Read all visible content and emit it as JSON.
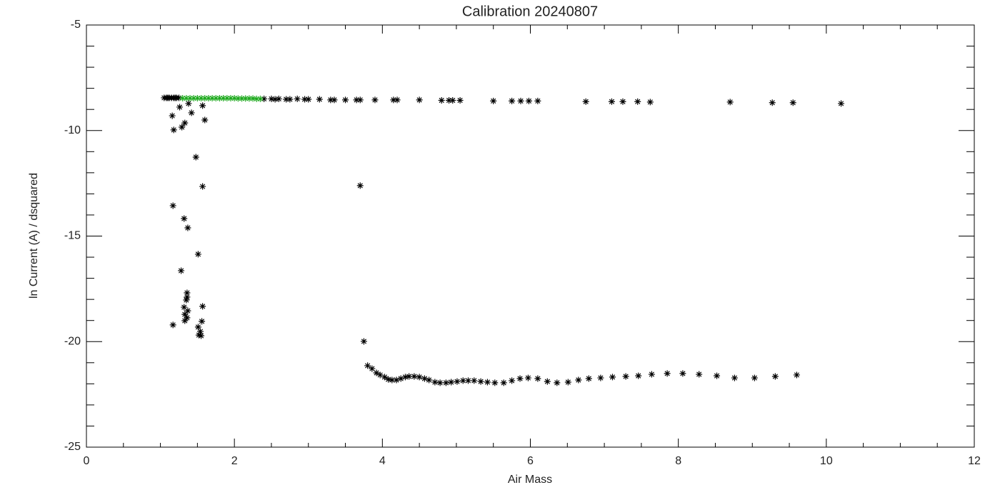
{
  "chart_data": {
    "type": "scatter",
    "title": "Calibration 20240807",
    "x_label": "Air Mass",
    "y_label": "ln Current (A) / dsquared",
    "xlim": [
      0,
      12
    ],
    "ylim": [
      -25,
      -5
    ],
    "xticks": [
      0,
      2,
      4,
      6,
      8,
      10,
      12
    ],
    "yticks": [
      -25,
      -20,
      -15,
      -10,
      -5
    ],
    "xminorticks": [
      0.5,
      1,
      1.5,
      2.5,
      3,
      3.5,
      4.5,
      5,
      5.5,
      6.5,
      7,
      7.5,
      8.5,
      9,
      9.5,
      10.5,
      11,
      11.5
    ],
    "yminorticks": [
      -24,
      -23,
      -22,
      -21,
      -19,
      -18,
      -17,
      -16,
      -14,
      -13,
      -12,
      -11,
      -9,
      -8,
      -7,
      -6
    ],
    "marker": "asterisk",
    "series": [
      {
        "color": "#000000",
        "x": [
          1.05,
          1.08,
          1.1,
          1.12,
          1.15,
          1.18,
          1.2,
          1.22,
          1.25,
          2.4,
          2.5,
          2.55,
          2.6,
          2.7,
          2.75,
          2.85,
          2.95,
          3.0,
          3.15,
          3.3,
          3.35,
          3.5,
          3.65,
          3.7,
          3.9,
          4.15,
          4.2,
          4.5,
          4.8,
          4.9,
          4.95,
          5.05,
          5.5,
          5.75,
          5.87,
          5.98,
          6.1,
          6.75,
          7.1,
          7.25,
          7.45,
          7.62,
          8.7,
          9.27,
          9.55,
          10.2,
          1.16,
          1.18,
          1.26,
          1.29,
          1.33,
          1.38,
          1.42,
          1.57,
          1.6,
          1.48,
          1.57,
          1.17,
          1.32,
          1.37,
          1.51,
          1.28,
          1.36,
          1.36,
          1.35,
          1.32,
          1.37,
          1.33,
          1.36,
          1.33,
          1.57,
          1.56,
          1.17,
          1.51,
          1.54,
          1.55,
          1.52,
          3.7,
          3.75,
          3.8,
          3.86,
          3.92,
          3.97,
          4.03,
          4.08,
          4.13,
          4.19,
          4.25,
          4.31,
          4.36,
          4.43,
          4.5,
          4.57,
          4.63,
          4.71,
          4.78,
          4.86,
          4.93,
          5.01,
          5.09,
          5.16,
          5.24,
          5.33,
          5.42,
          5.52,
          5.64,
          5.75,
          5.86,
          5.97,
          6.1,
          6.23,
          6.36,
          6.51,
          6.65,
          6.79,
          6.95,
          7.11,
          7.29,
          7.46,
          7.64,
          7.85,
          8.06,
          8.28,
          8.52,
          8.76,
          9.03,
          9.31,
          9.6
        ],
        "values": [
          -8.45,
          -8.45,
          -8.45,
          -8.45,
          -8.45,
          -8.45,
          -8.45,
          -8.45,
          -8.45,
          -8.5,
          -8.5,
          -8.52,
          -8.5,
          -8.52,
          -8.52,
          -8.5,
          -8.52,
          -8.52,
          -8.52,
          -8.55,
          -8.55,
          -8.55,
          -8.55,
          -8.55,
          -8.55,
          -8.55,
          -8.55,
          -8.55,
          -8.57,
          -8.57,
          -8.57,
          -8.57,
          -8.6,
          -8.6,
          -8.6,
          -8.6,
          -8.6,
          -8.63,
          -8.63,
          -8.63,
          -8.63,
          -8.65,
          -8.65,
          -8.68,
          -8.68,
          -8.72,
          -9.3,
          -9.97,
          -8.89,
          -9.84,
          -9.64,
          -8.72,
          -9.16,
          -8.82,
          -9.5,
          -11.26,
          -12.65,
          -13.56,
          -14.17,
          -14.61,
          -15.86,
          -16.64,
          -17.69,
          -17.89,
          -18.03,
          -18.37,
          -18.54,
          -18.71,
          -18.87,
          -19.01,
          -18.33,
          -19.04,
          -19.21,
          -19.31,
          -19.52,
          -19.72,
          -19.69,
          -12.61,
          -19.99,
          -21.14,
          -21.28,
          -21.48,
          -21.58,
          -21.68,
          -21.79,
          -21.82,
          -21.82,
          -21.75,
          -21.68,
          -21.65,
          -21.65,
          -21.68,
          -21.75,
          -21.82,
          -21.92,
          -21.95,
          -21.95,
          -21.92,
          -21.89,
          -21.85,
          -21.85,
          -21.85,
          -21.89,
          -21.92,
          -21.95,
          -21.95,
          -21.85,
          -21.75,
          -21.72,
          -21.75,
          -21.89,
          -21.95,
          -21.92,
          -21.82,
          -21.75,
          -21.72,
          -21.68,
          -21.65,
          -21.62,
          -21.55,
          -21.51,
          -21.51,
          -21.55,
          -21.62,
          -21.72,
          -21.72,
          -21.65,
          -21.58
        ]
      },
      {
        "color": "#1faa1f",
        "x": [
          1.3,
          1.35,
          1.4,
          1.45,
          1.5,
          1.55,
          1.6,
          1.65,
          1.7,
          1.75,
          1.8,
          1.85,
          1.9,
          1.95,
          2.0,
          2.05,
          2.1,
          2.15,
          2.2,
          2.25,
          2.3,
          2.35
        ],
        "values": [
          -8.47,
          -8.47,
          -8.47,
          -8.47,
          -8.47,
          -8.47,
          -8.47,
          -8.47,
          -8.47,
          -8.47,
          -8.47,
          -8.47,
          -8.47,
          -8.47,
          -8.47,
          -8.48,
          -8.48,
          -8.48,
          -8.48,
          -8.48,
          -8.5,
          -8.5
        ]
      }
    ]
  }
}
